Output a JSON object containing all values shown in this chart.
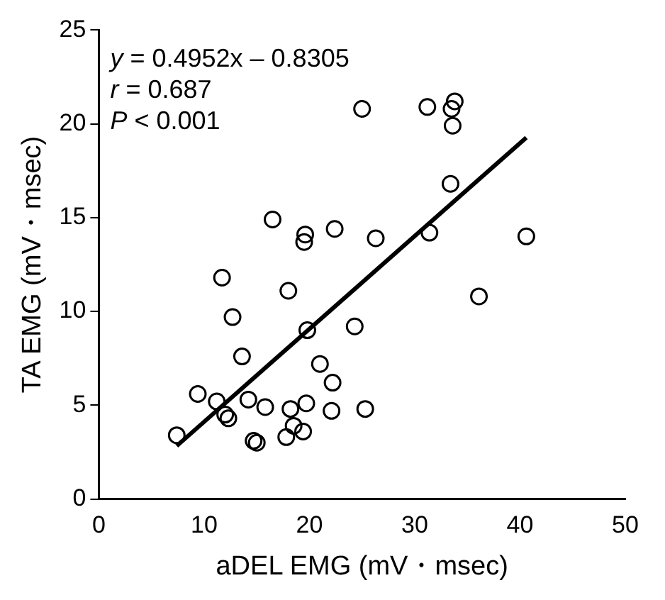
{
  "chart_data": {
    "type": "scatter",
    "xlabel": "aDEL EMG (mV・msec)",
    "ylabel": "TA EMG (mV・msec)",
    "xlim": [
      0,
      50
    ],
    "xticks": [
      0,
      10,
      20,
      30,
      40,
      50
    ],
    "ylim": [
      0,
      25
    ],
    "yticks": [
      0,
      5,
      10,
      15,
      20,
      25
    ],
    "grid": false,
    "legend": false,
    "annotations": [
      "y = 0.4952x – 0.8305",
      "r = 0.687",
      "P < 0.001"
    ],
    "series": [
      {
        "marker": "circle",
        "color": "#000000",
        "x": [
          7.4,
          9.4,
          11.2,
          11.7,
          12.0,
          12.3,
          12.7,
          13.6,
          14.2,
          14.7,
          15.0,
          15.8,
          16.5,
          17.8,
          18.0,
          18.2,
          18.5,
          19.4,
          19.5,
          19.6,
          19.7,
          19.8,
          21.0,
          22.1,
          22.2,
          22.4,
          24.3,
          25.0,
          25.3,
          26.3,
          31.2,
          31.4,
          33.4,
          33.5,
          33.6,
          33.8,
          36.1,
          40.6
        ],
        "values": [
          3.4,
          5.6,
          5.2,
          11.8,
          4.5,
          4.3,
          9.7,
          7.6,
          5.3,
          3.1,
          3.0,
          4.9,
          14.9,
          3.3,
          11.1,
          4.8,
          3.9,
          3.6,
          13.7,
          14.1,
          5.1,
          9.0,
          7.2,
          4.7,
          6.2,
          14.4,
          9.2,
          20.8,
          4.8,
          13.9,
          20.9,
          14.2,
          16.8,
          20.8,
          19.9,
          21.2,
          10.8,
          14.0
        ]
      },
      {
        "type": "line",
        "marker": "none",
        "color": "#000000",
        "x": [
          7.4,
          40.6
        ],
        "values": [
          2.83,
          19.27
        ]
      }
    ]
  }
}
